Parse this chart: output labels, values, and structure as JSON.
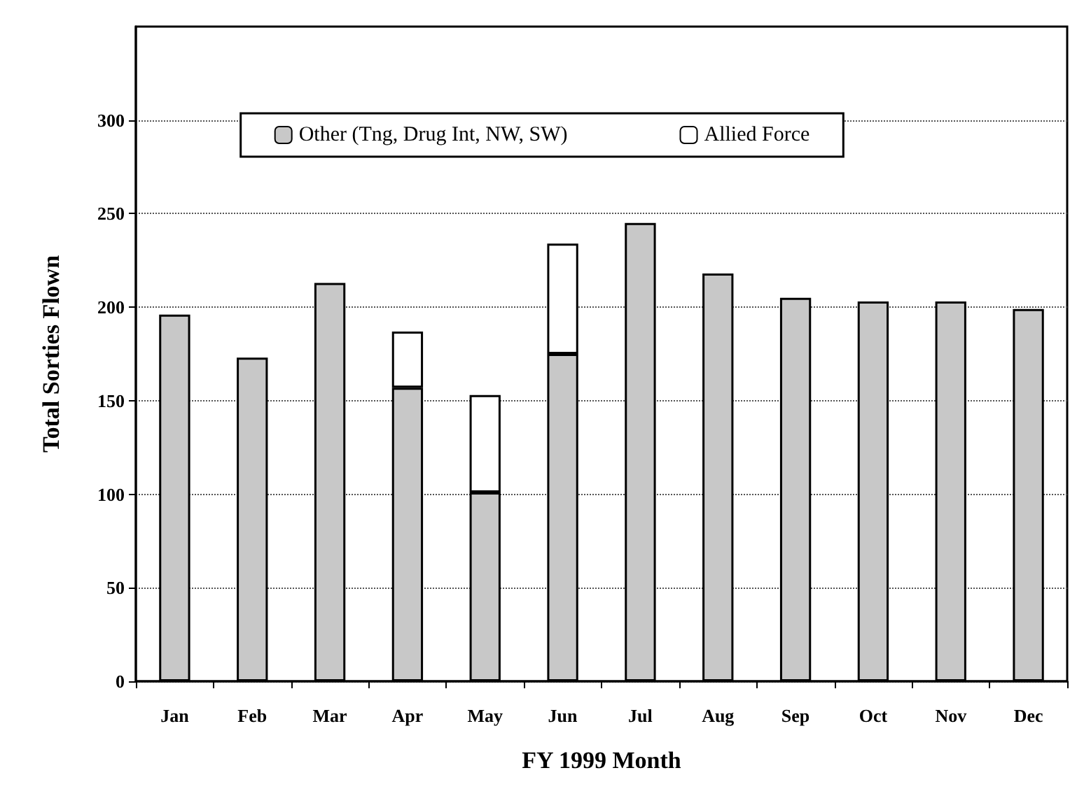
{
  "chart_data": {
    "type": "bar",
    "stacked": true,
    "xlabel": "FY 1999 Month",
    "ylabel": "Total Sorties Flown",
    "categories": [
      "Jan",
      "Feb",
      "Mar",
      "Apr",
      "May",
      "Jun",
      "Jul",
      "Aug",
      "Sep",
      "Oct",
      "Nov",
      "Dec"
    ],
    "series": [
      {
        "name": "Other (Tng, Drug Int, NW, SW)",
        "color": "#c8c8c8",
        "values": [
          196,
          173,
          213,
          157,
          101,
          175,
          245,
          218,
          205,
          203,
          203,
          199
        ]
      },
      {
        "name": "Allied Force",
        "color": "#ffffff",
        "values": [
          null,
          null,
          null,
          30,
          52,
          59,
          null,
          null,
          null,
          null,
          null,
          null
        ]
      }
    ],
    "ylim": [
      0,
      350
    ],
    "yticks": [
      0,
      50,
      100,
      150,
      200,
      250,
      300
    ],
    "grid": "y",
    "legend": "top"
  }
}
